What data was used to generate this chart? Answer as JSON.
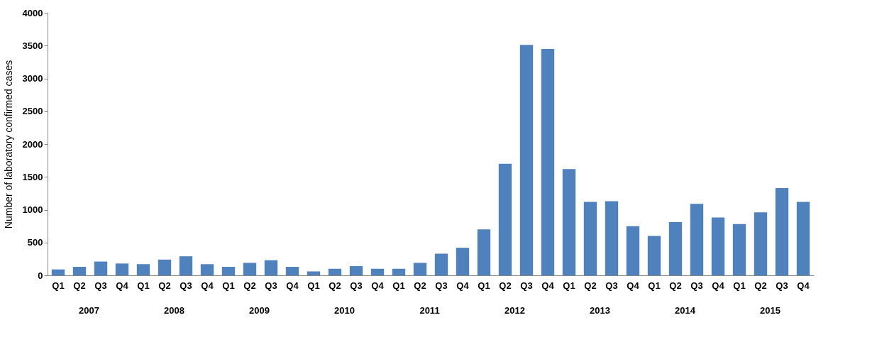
{
  "chart_data": {
    "type": "bar",
    "ylabel": "Number of laboratory confirmed cases",
    "categories": [
      "Q1",
      "Q2",
      "Q3",
      "Q4",
      "Q1",
      "Q2",
      "Q3",
      "Q4",
      "Q1",
      "Q2",
      "Q3",
      "Q4",
      "Q1",
      "Q2",
      "Q3",
      "Q4",
      "Q1",
      "Q2",
      "Q3",
      "Q4",
      "Q1",
      "Q2",
      "Q3",
      "Q4",
      "Q1",
      "Q2",
      "Q3",
      "Q4",
      "Q1",
      "Q2",
      "Q3",
      "Q4",
      "Q1",
      "Q2",
      "Q3",
      "Q4"
    ],
    "values": [
      90,
      130,
      210,
      180,
      170,
      240,
      290,
      170,
      130,
      190,
      230,
      130,
      60,
      100,
      140,
      100,
      100,
      190,
      330,
      420,
      700,
      1700,
      3510,
      3450,
      1620,
      1120,
      1130,
      750,
      600,
      810,
      1090,
      880,
      780,
      960,
      1330,
      1120
    ],
    "color": "#4f81bd",
    "ylim": [
      0,
      4000
    ],
    "yticks": [
      0,
      500,
      1000,
      1500,
      2000,
      2500,
      3000,
      3500,
      4000
    ],
    "annotations": [
      "2007",
      "2008",
      "2009",
      "2010",
      "2011",
      "2012",
      "2013",
      "2014",
      "2015"
    ],
    "grid": false
  }
}
